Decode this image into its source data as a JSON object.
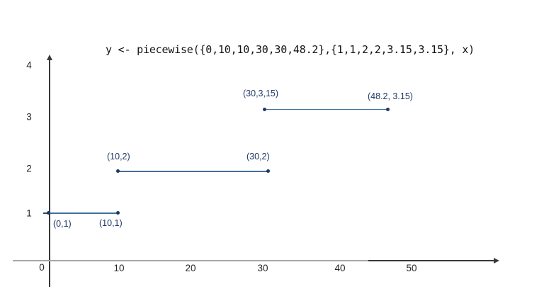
{
  "chart_data": {
    "type": "line",
    "title": "y <- piecewise({0,10,10,30,30,48.2},{1,1,2,2,3.15,3.15}, x)",
    "function": "piecewise step function",
    "segments": [
      {
        "x_start": 0,
        "x_end": 10,
        "y": 1,
        "label_start": "(0,1)",
        "label_end": "(10,1)"
      },
      {
        "x_start": 10,
        "x_end": 30,
        "y": 2,
        "label_start": "(10,2)",
        "label_end": "(30,2)"
      },
      {
        "x_start": 30,
        "x_end": 48.2,
        "y": 3.15,
        "label_start": "(30,3,15)",
        "label_end": "(48.2, 3.15)"
      }
    ],
    "x_ticks": [
      "0",
      "10",
      "20",
      "30",
      "40",
      "50"
    ],
    "y_ticks": [
      "1",
      "2",
      "3",
      "4"
    ],
    "xlabel": "",
    "ylabel": "",
    "xlim": [
      0,
      62
    ],
    "ylim": [
      0,
      4.6
    ],
    "grid": false,
    "legend": "none",
    "colors": {
      "segment_line": "#41719c",
      "point_dot": "#1f3864",
      "label_text": "#1f3864",
      "axis_gray": "#a6a6a6",
      "axis_black": "#383838"
    }
  }
}
